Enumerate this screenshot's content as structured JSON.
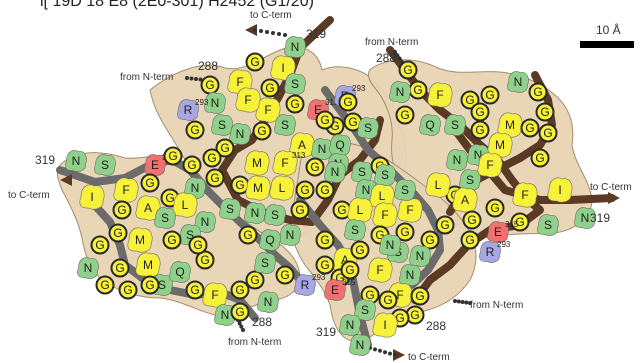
{
  "header": {
    "partial_title": "ſ[ 19D 18 E8 (2E0-301) H2452 (G1/20)"
  },
  "scalebar": {
    "label": "10 Å",
    "color": "#000000"
  },
  "colors": {
    "envelope": "#e8d4b4",
    "envelope_stroke": "#a08966",
    "backbone_outer": "#5a3a24",
    "backbone_inner": "#6b6b6b",
    "hydrophobic": "#f7f13a",
    "polar": "#8fd18a",
    "acidic": "#f27070",
    "basic": "#a8a6e3",
    "glycine_ring": "#2a2a2a"
  },
  "legend": {
    "residue_types": [
      "hydrophobic",
      "polar",
      "acidic",
      "basic",
      "glycine"
    ]
  },
  "terminus_labels": {
    "to_c": "to C-term",
    "from_n": "from N-term"
  },
  "residue_numbers": {
    "n288": "288",
    "n319": "319",
    "n315": "315",
    "n313": "313",
    "n293": "293"
  },
  "letters": {
    "G": "G",
    "N": "N",
    "S": "S",
    "F": "F",
    "I": "I",
    "M": "M",
    "L": "L",
    "A": "A",
    "Q": "Q",
    "E": "E",
    "R": "R"
  }
}
